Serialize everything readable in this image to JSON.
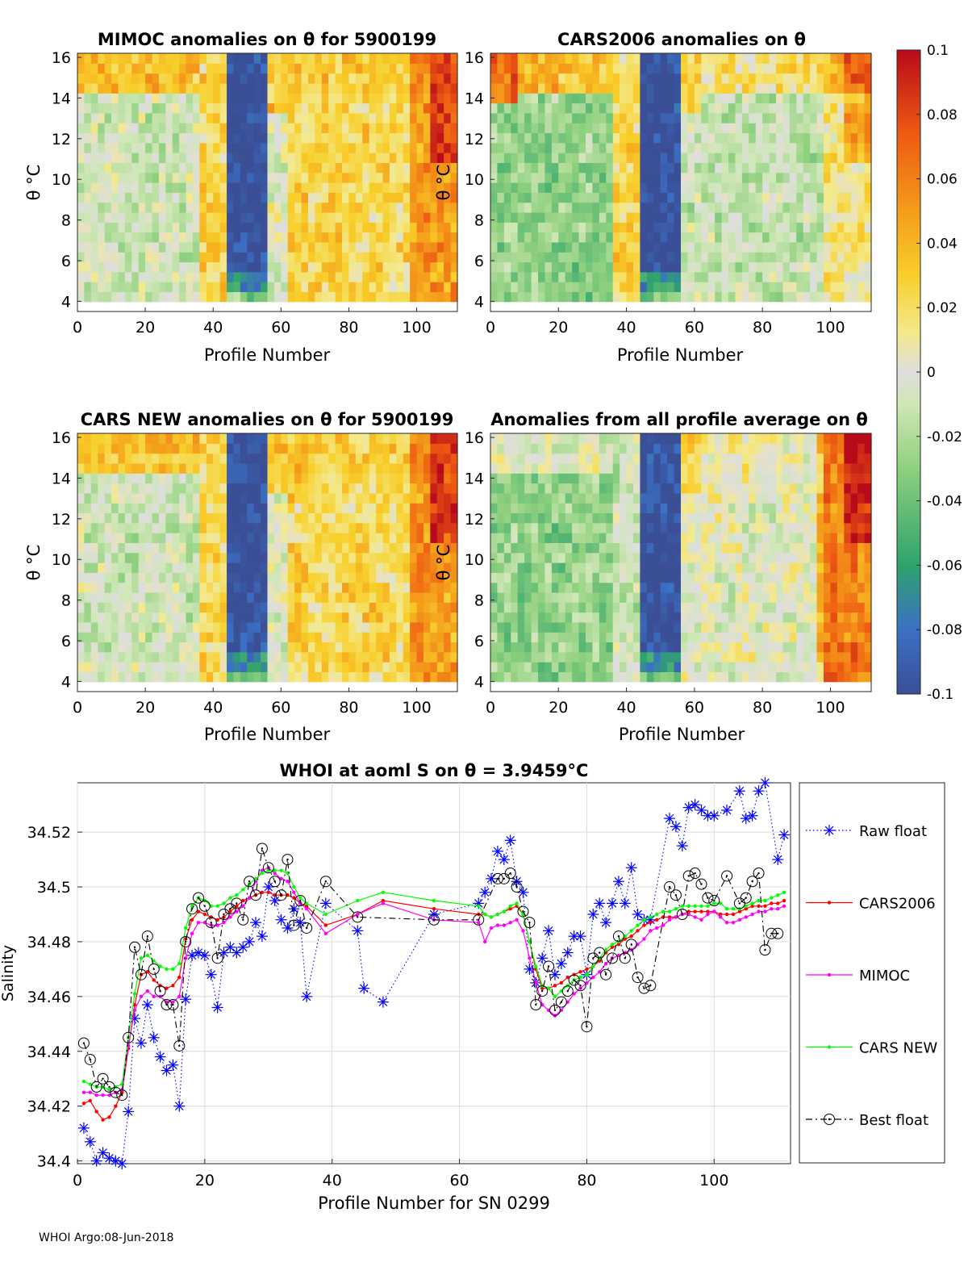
{
  "footer": "WHOI Argo:08-Jun-2018",
  "colorbar": {
    "ticks": [
      "0.1",
      "0.08",
      "0.06",
      "0.04",
      "0.02",
      "0",
      "-0.02",
      "-0.04",
      "-0.06",
      "-0.08",
      "-0.1"
    ],
    "range": [
      -0.1,
      0.1
    ]
  },
  "chart_data": [
    {
      "type": "heatmap",
      "title": "MIMOC anomalies on θ  for 5900199",
      "xlabel": "Profile Number",
      "ylabel": "θ °C",
      "xticks": [
        "0",
        "20",
        "40",
        "60",
        "80",
        "100"
      ],
      "yticks": [
        "16",
        "14",
        "12",
        "10",
        "8",
        "6",
        "4"
      ],
      "xlim": [
        0,
        112
      ],
      "ylim": [
        3.5,
        16.2
      ]
    },
    {
      "type": "heatmap",
      "title": "CARS2006 anomalies on θ",
      "xlabel": "Profile Number",
      "ylabel": "θ °C",
      "xticks": [
        "0",
        "20",
        "40",
        "60",
        "80",
        "100"
      ],
      "yticks": [
        "16",
        "14",
        "12",
        "10",
        "8",
        "6",
        "4"
      ],
      "xlim": [
        0,
        112
      ],
      "ylim": [
        3.5,
        16.2
      ]
    },
    {
      "type": "heatmap",
      "title": "CARS NEW anomalies on θ for 5900199",
      "xlabel": "Profile Number",
      "ylabel": "θ °C",
      "xticks": [
        "0",
        "20",
        "40",
        "60",
        "80",
        "100"
      ],
      "yticks": [
        "16",
        "14",
        "12",
        "10",
        "8",
        "6",
        "4"
      ],
      "xlim": [
        0,
        112
      ],
      "ylim": [
        3.5,
        16.2
      ]
    },
    {
      "type": "heatmap",
      "title": "Anomalies from all profile average on θ",
      "xlabel": "Profile Number",
      "ylabel": "θ °C",
      "xticks": [
        "0",
        "20",
        "40",
        "60",
        "80",
        "100"
      ],
      "yticks": [
        "16",
        "14",
        "12",
        "10",
        "8",
        "6",
        "4"
      ],
      "xlim": [
        0,
        112
      ],
      "ylim": [
        3.5,
        16.2
      ]
    },
    {
      "type": "line",
      "title": "WHOI at aoml S on θ = 3.9459°C",
      "xlabel": "Profile Number for SN 0299",
      "ylabel": "Salinity",
      "xlim": [
        0,
        112
      ],
      "ylim": [
        34.399,
        34.538
      ],
      "xticks": [
        0,
        20,
        40,
        60,
        80,
        100
      ],
      "yticks": [
        34.4,
        34.42,
        34.44,
        34.46,
        34.48,
        34.5,
        34.52
      ],
      "grid": true,
      "legend_position": "right",
      "series": [
        {
          "name": "Raw float",
          "color": "#0000ff",
          "style": "dotted",
          "marker": "asterisk",
          "x": [
            1,
            2,
            3,
            4,
            5,
            6,
            7,
            8,
            9,
            10,
            11,
            12,
            13,
            14,
            15,
            16,
            17,
            18,
            19,
            20,
            21,
            22,
            23,
            24,
            25,
            26,
            27,
            28,
            29,
            30,
            31,
            32,
            33,
            34,
            35,
            36,
            39,
            44,
            45,
            48,
            56,
            63,
            64,
            65,
            66,
            67,
            68,
            69,
            70,
            71,
            72,
            73,
            74,
            75,
            76,
            77,
            78,
            79,
            80,
            81,
            82,
            83,
            84,
            85,
            86,
            87,
            88,
            89,
            90,
            93,
            94,
            95,
            96,
            97,
            98,
            99,
            100,
            102,
            104,
            105,
            106,
            107,
            108,
            110,
            111
          ],
          "y": [
            34.412,
            34.407,
            34.4,
            34.403,
            34.401,
            34.4,
            34.399,
            34.418,
            34.452,
            34.443,
            34.457,
            34.445,
            34.438,
            34.433,
            34.435,
            34.42,
            34.459,
            34.475,
            34.476,
            34.475,
            34.468,
            34.456,
            34.476,
            34.478,
            34.476,
            34.478,
            34.48,
            34.487,
            34.482,
            34.5,
            34.495,
            34.488,
            34.485,
            34.492,
            34.487,
            34.46,
            34.494,
            34.484,
            34.463,
            34.458,
            34.49,
            34.494,
            34.498,
            34.503,
            34.513,
            34.51,
            34.517,
            34.502,
            34.498,
            34.47,
            34.465,
            34.474,
            34.484,
            34.468,
            34.472,
            34.476,
            34.482,
            34.482,
            34.468,
            34.49,
            34.494,
            34.487,
            34.494,
            34.502,
            34.494,
            34.507,
            34.49,
            34.488,
            34.488,
            34.525,
            34.522,
            34.515,
            34.529,
            34.53,
            34.528,
            34.526,
            34.526,
            34.528,
            34.535,
            34.525,
            34.526,
            34.535,
            34.538,
            34.51,
            34.519
          ]
        },
        {
          "name": "CARS2006",
          "color": "#ff0000",
          "style": "solid",
          "marker": "dot",
          "x": [
            1,
            2,
            3,
            4,
            5,
            6,
            7,
            8,
            9,
            10,
            11,
            12,
            13,
            14,
            15,
            16,
            17,
            18,
            19,
            20,
            21,
            22,
            23,
            24,
            25,
            26,
            27,
            28,
            29,
            30,
            31,
            32,
            33,
            34,
            35,
            36,
            39,
            44,
            48,
            56,
            63,
            64,
            65,
            66,
            67,
            68,
            69,
            70,
            71,
            72,
            73,
            74,
            75,
            76,
            77,
            78,
            79,
            80,
            81,
            82,
            83,
            84,
            85,
            86,
            87,
            88,
            89,
            90,
            91,
            92,
            93,
            94,
            95,
            96,
            97,
            98,
            99,
            100,
            101,
            102,
            103,
            104,
            105,
            106,
            107,
            108,
            109,
            110,
            111
          ],
          "y": [
            34.421,
            34.422,
            34.418,
            34.415,
            34.416,
            34.42,
            34.425,
            34.441,
            34.457,
            34.468,
            34.469,
            34.466,
            34.464,
            34.463,
            34.464,
            34.467,
            34.481,
            34.488,
            34.491,
            34.49,
            34.489,
            34.488,
            34.489,
            34.491,
            34.493,
            34.495,
            34.496,
            34.497,
            34.498,
            34.498,
            34.497,
            34.497,
            34.497,
            34.496,
            34.494,
            34.493,
            34.486,
            34.49,
            34.495,
            34.492,
            34.49,
            34.49,
            34.489,
            34.49,
            34.491,
            34.492,
            34.493,
            34.49,
            34.48,
            34.47,
            34.463,
            34.463,
            34.464,
            34.465,
            34.467,
            34.468,
            34.469,
            34.47,
            34.471,
            34.473,
            34.476,
            34.478,
            34.479,
            34.481,
            34.482,
            34.484,
            34.486,
            34.487,
            34.488,
            34.489,
            34.489,
            34.489,
            34.49,
            34.491,
            34.491,
            34.491,
            34.491,
            34.491,
            34.49,
            34.49,
            34.49,
            34.491,
            34.492,
            34.493,
            34.493,
            34.493,
            34.494,
            34.494,
            34.495
          ]
        },
        {
          "name": "MIMOC",
          "color": "#ff00ff",
          "style": "solid",
          "marker": "dot",
          "x": [
            1,
            2,
            3,
            4,
            5,
            6,
            7,
            8,
            9,
            10,
            11,
            12,
            13,
            14,
            15,
            16,
            17,
            18,
            19,
            20,
            21,
            22,
            23,
            24,
            25,
            26,
            27,
            28,
            29,
            30,
            31,
            32,
            33,
            34,
            35,
            36,
            39,
            44,
            48,
            56,
            63,
            64,
            65,
            66,
            67,
            68,
            69,
            70,
            71,
            72,
            73,
            74,
            75,
            76,
            77,
            78,
            79,
            80,
            81,
            82,
            83,
            84,
            85,
            86,
            87,
            88,
            89,
            90,
            91,
            92,
            93,
            94,
            95,
            96,
            97,
            98,
            99,
            100,
            101,
            102,
            103,
            104,
            105,
            106,
            107,
            108,
            109,
            110,
            111
          ],
          "y": [
            34.425,
            34.425,
            34.424,
            34.424,
            34.424,
            34.425,
            34.426,
            34.442,
            34.455,
            34.46,
            34.462,
            34.46,
            34.46,
            34.458,
            34.458,
            34.46,
            34.474,
            34.483,
            34.487,
            34.487,
            34.486,
            34.486,
            34.487,
            34.489,
            34.491,
            34.493,
            34.496,
            34.502,
            34.506,
            34.507,
            34.505,
            34.503,
            34.502,
            34.498,
            34.494,
            34.492,
            34.483,
            34.49,
            34.494,
            34.488,
            34.487,
            34.48,
            34.485,
            34.486,
            34.486,
            34.487,
            34.488,
            34.484,
            34.474,
            34.465,
            34.457,
            34.455,
            34.453,
            34.455,
            34.458,
            34.461,
            34.463,
            34.465,
            34.467,
            34.469,
            34.472,
            34.474,
            34.475,
            34.476,
            34.477,
            34.479,
            34.481,
            34.484,
            34.485,
            34.486,
            34.488,
            34.489,
            34.49,
            34.49,
            34.489,
            34.488,
            34.49,
            34.491,
            34.489,
            34.487,
            34.487,
            34.488,
            34.489,
            34.49,
            34.491,
            34.491,
            34.492,
            34.492,
            34.493
          ]
        },
        {
          "name": "CARS NEW",
          "color": "#00ff00",
          "style": "solid",
          "marker": "dot",
          "x": [
            1,
            2,
            3,
            4,
            5,
            6,
            7,
            8,
            9,
            10,
            11,
            12,
            13,
            14,
            15,
            16,
            17,
            18,
            19,
            20,
            21,
            22,
            23,
            24,
            25,
            26,
            27,
            28,
            29,
            30,
            31,
            32,
            33,
            34,
            35,
            36,
            39,
            44,
            48,
            56,
            63,
            64,
            65,
            66,
            67,
            68,
            69,
            70,
            71,
            72,
            73,
            74,
            75,
            76,
            77,
            78,
            79,
            80,
            81,
            82,
            83,
            84,
            85,
            86,
            87,
            88,
            89,
            90,
            91,
            92,
            93,
            94,
            95,
            96,
            97,
            98,
            99,
            100,
            101,
            102,
            103,
            104,
            105,
            106,
            107,
            108,
            109,
            110,
            111
          ],
          "y": [
            34.429,
            34.428,
            34.427,
            34.427,
            34.426,
            34.427,
            34.428,
            34.445,
            34.461,
            34.474,
            34.475,
            34.473,
            34.471,
            34.47,
            34.47,
            34.472,
            34.485,
            34.493,
            34.496,
            34.495,
            34.493,
            34.493,
            34.494,
            34.496,
            34.497,
            34.499,
            34.501,
            34.503,
            34.505,
            34.506,
            34.506,
            34.506,
            34.505,
            34.5,
            34.496,
            34.494,
            34.49,
            34.495,
            34.498,
            34.495,
            34.493,
            34.49,
            34.489,
            34.49,
            34.491,
            34.493,
            34.494,
            34.49,
            34.48,
            34.471,
            34.464,
            34.463,
            34.46,
            34.462,
            34.464,
            34.466,
            34.467,
            34.468,
            34.471,
            34.474,
            34.477,
            34.479,
            34.48,
            34.482,
            34.484,
            34.486,
            34.488,
            34.489,
            34.49,
            34.491,
            34.491,
            34.492,
            34.493,
            34.493,
            34.493,
            34.493,
            34.493,
            34.494,
            34.494,
            34.492,
            34.492,
            34.492,
            34.493,
            34.494,
            34.495,
            34.495,
            34.496,
            34.497,
            34.498
          ]
        },
        {
          "name": "Best float",
          "color": "#000000",
          "style": "dashdot",
          "marker": "circle",
          "x": [
            1,
            2,
            3,
            4,
            5,
            6,
            7,
            8,
            9,
            10,
            11,
            12,
            13,
            14,
            15,
            16,
            17,
            18,
            19,
            20,
            21,
            22,
            23,
            24,
            25,
            26,
            27,
            28,
            29,
            30,
            31,
            32,
            33,
            34,
            35,
            36,
            39,
            44,
            56,
            63,
            66,
            67,
            68,
            69,
            70,
            71,
            72,
            73,
            74,
            75,
            76,
            77,
            78,
            79,
            80,
            81,
            82,
            83,
            84,
            85,
            86,
            87,
            88,
            89,
            90,
            93,
            94,
            95,
            96,
            97,
            98,
            99,
            100,
            102,
            104,
            105,
            106,
            107,
            108,
            109,
            110
          ],
          "y": [
            34.443,
            34.437,
            34.427,
            34.43,
            34.427,
            34.425,
            34.424,
            34.445,
            34.478,
            34.468,
            34.482,
            34.47,
            34.462,
            34.457,
            34.457,
            34.442,
            34.48,
            34.492,
            34.496,
            34.493,
            34.487,
            34.474,
            34.49,
            34.492,
            34.494,
            34.488,
            34.502,
            34.497,
            34.514,
            34.507,
            34.502,
            34.497,
            34.51,
            34.486,
            34.495,
            34.485,
            34.502,
            34.489,
            34.488,
            34.488,
            34.503,
            34.503,
            34.505,
            34.5,
            34.491,
            34.487,
            34.457,
            34.462,
            34.471,
            34.455,
            34.458,
            34.462,
            34.466,
            34.464,
            34.449,
            34.474,
            34.476,
            34.468,
            34.474,
            34.482,
            34.474,
            34.479,
            34.467,
            34.463,
            34.464,
            34.5,
            34.497,
            34.49,
            34.504,
            34.505,
            34.501,
            34.496,
            34.495,
            34.504,
            34.494,
            34.496,
            34.502,
            34.505,
            34.477,
            34.483,
            34.483
          ]
        }
      ]
    }
  ]
}
